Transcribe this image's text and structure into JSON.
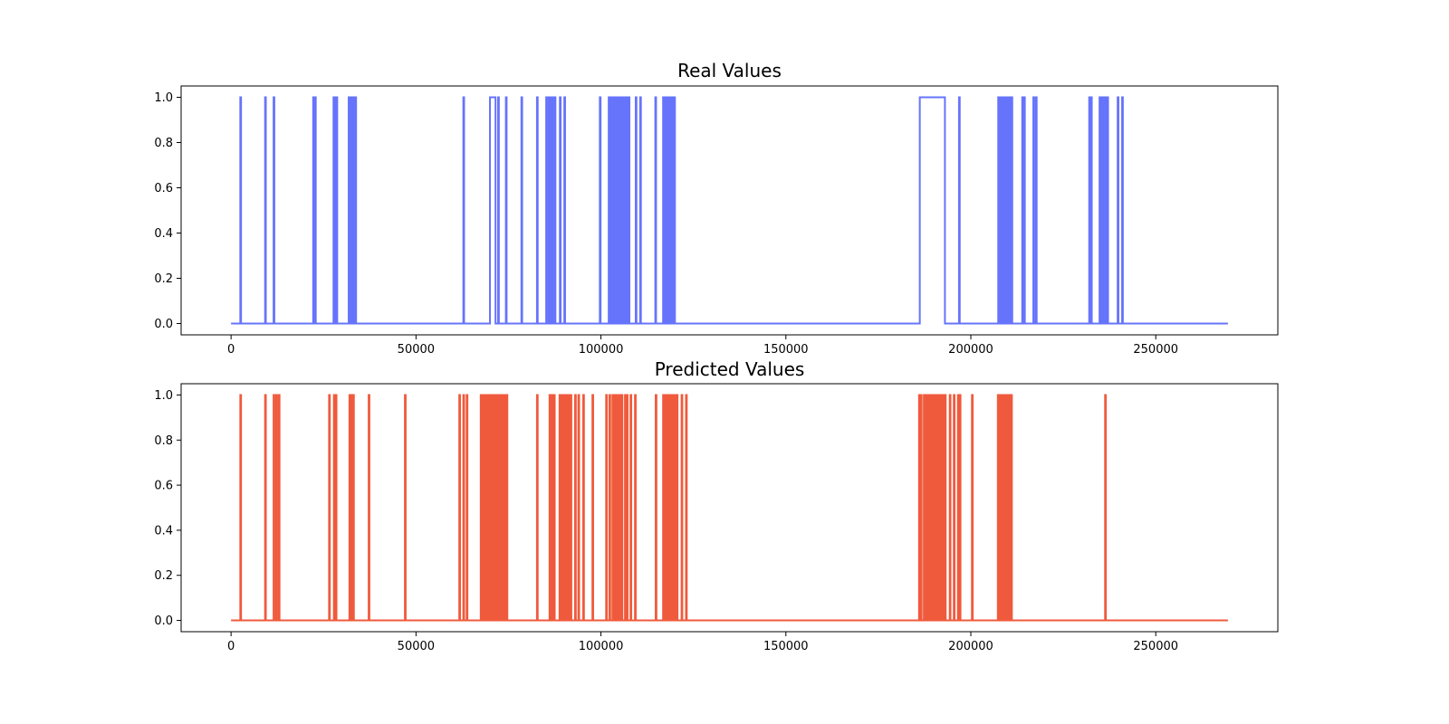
{
  "chart_data": [
    {
      "type": "line",
      "title": "Real Values",
      "color": "#6674fc",
      "xlim": [
        -13500,
        283000
      ],
      "ylim": [
        -0.05,
        1.05
      ],
      "xticks": [
        0,
        50000,
        100000,
        150000,
        200000,
        250000
      ],
      "xtick_labels": [
        "0",
        "50000",
        "100000",
        "150000",
        "200000",
        "250000"
      ],
      "yticks": [
        0.0,
        0.2,
        0.4,
        0.6,
        0.8,
        1.0
      ],
      "ytick_labels": [
        "0.0",
        "0.2",
        "0.4",
        "0.6",
        "0.8",
        "1.0"
      ],
      "x_range": [
        0,
        269500
      ],
      "active_intervals": [
        [
          2500,
          2700
        ],
        [
          9200,
          9400
        ],
        [
          11500,
          11700
        ],
        [
          22200,
          22400
        ],
        [
          22700,
          22900
        ],
        [
          27700,
          27900
        ],
        [
          28100,
          28300
        ],
        [
          28500,
          28700
        ],
        [
          31800,
          32000
        ],
        [
          32200,
          32400
        ],
        [
          32600,
          32800
        ],
        [
          33100,
          33300
        ],
        [
          33600,
          33800
        ],
        [
          62800,
          63000
        ],
        [
          70000,
          71500
        ],
        [
          72200,
          72400
        ],
        [
          74300,
          74500
        ],
        [
          78500,
          78700
        ],
        [
          82700,
          82900
        ],
        [
          85200,
          85400
        ],
        [
          85900,
          86100
        ],
        [
          86500,
          86700
        ],
        [
          87000,
          87200
        ],
        [
          87500,
          87700
        ],
        [
          88900,
          89100
        ],
        [
          90100,
          90300
        ],
        [
          99700,
          99900
        ],
        [
          102100,
          102300
        ],
        [
          102700,
          102900
        ],
        [
          103100,
          103300
        ],
        [
          103500,
          103700
        ],
        [
          103900,
          104100
        ],
        [
          104300,
          104500
        ],
        [
          104700,
          104900
        ],
        [
          105100,
          105300
        ],
        [
          105500,
          105700
        ],
        [
          105900,
          106100
        ],
        [
          106300,
          106500
        ],
        [
          106700,
          106900
        ],
        [
          107100,
          107300
        ],
        [
          107500,
          107700
        ],
        [
          109400,
          109600
        ],
        [
          110600,
          110800
        ],
        [
          114700,
          114900
        ],
        [
          116800,
          117000
        ],
        [
          117300,
          117500
        ],
        [
          117800,
          118000
        ],
        [
          118300,
          118500
        ],
        [
          118800,
          119000
        ],
        [
          119300,
          119500
        ],
        [
          119800,
          120000
        ],
        [
          186200,
          193000
        ],
        [
          196800,
          197000
        ],
        [
          207400,
          207600
        ],
        [
          207900,
          208100
        ],
        [
          208400,
          208600
        ],
        [
          208900,
          209100
        ],
        [
          209400,
          209600
        ],
        [
          209900,
          210100
        ],
        [
          210400,
          210600
        ],
        [
          211000,
          211200
        ],
        [
          213900,
          214100
        ],
        [
          214400,
          214600
        ],
        [
          216900,
          217100
        ],
        [
          217600,
          217800
        ],
        [
          232000,
          232200
        ],
        [
          232500,
          232700
        ],
        [
          234800,
          235000
        ],
        [
          235300,
          235500
        ],
        [
          235800,
          236000
        ],
        [
          236300,
          236500
        ],
        [
          236900,
          237100
        ],
        [
          239700,
          239900
        ],
        [
          240900,
          241100
        ]
      ]
    },
    {
      "type": "line",
      "title": "Predicted Values",
      "color": "#f05a3c",
      "xlim": [
        -13500,
        283000
      ],
      "ylim": [
        -0.05,
        1.05
      ],
      "xticks": [
        0,
        50000,
        100000,
        150000,
        200000,
        250000
      ],
      "xtick_labels": [
        "0",
        "50000",
        "100000",
        "150000",
        "200000",
        "250000"
      ],
      "yticks": [
        0.0,
        0.2,
        0.4,
        0.6,
        0.8,
        1.0
      ],
      "ytick_labels": [
        "0.0",
        "0.2",
        "0.4",
        "0.6",
        "0.8",
        "1.0"
      ],
      "x_range": [
        0,
        269500
      ],
      "active_intervals": [
        [
          2500,
          2700
        ],
        [
          9200,
          9400
        ],
        [
          11500,
          11700
        ],
        [
          12200,
          12400
        ],
        [
          12900,
          13100
        ],
        [
          26500,
          26700
        ],
        [
          27800,
          28000
        ],
        [
          28300,
          28500
        ],
        [
          32000,
          32200
        ],
        [
          32500,
          32700
        ],
        [
          33000,
          33200
        ],
        [
          37200,
          37400
        ],
        [
          47000,
          47200
        ],
        [
          61700,
          61900
        ],
        [
          62800,
          63000
        ],
        [
          63700,
          63900
        ],
        [
          67500,
          67700
        ],
        [
          67900,
          68100
        ],
        [
          68300,
          68500
        ],
        [
          68700,
          68900
        ],
        [
          69100,
          69300
        ],
        [
          69500,
          69700
        ],
        [
          69900,
          70100
        ],
        [
          70300,
          70500
        ],
        [
          70700,
          70900
        ],
        [
          71100,
          71300
        ],
        [
          71500,
          71700
        ],
        [
          71900,
          72100
        ],
        [
          72300,
          72500
        ],
        [
          72700,
          72900
        ],
        [
          73300,
          73500
        ],
        [
          73900,
          74100
        ],
        [
          74500,
          74700
        ],
        [
          82700,
          82900
        ],
        [
          86100,
          86300
        ],
        [
          86700,
          86900
        ],
        [
          87300,
          87500
        ],
        [
          88800,
          89000
        ],
        [
          89300,
          89500
        ],
        [
          89800,
          90000
        ],
        [
          90300,
          90500
        ],
        [
          90800,
          91000
        ],
        [
          91300,
          91500
        ],
        [
          91800,
          92000
        ],
        [
          93000,
          93200
        ],
        [
          93900,
          94100
        ],
        [
          95200,
          95400
        ],
        [
          97700,
          97900
        ],
        [
          101400,
          101600
        ],
        [
          102300,
          102500
        ],
        [
          103100,
          103300
        ],
        [
          103600,
          103800
        ],
        [
          104100,
          104300
        ],
        [
          104600,
          104800
        ],
        [
          105100,
          105300
        ],
        [
          105600,
          105800
        ],
        [
          106500,
          106700
        ],
        [
          107000,
          107200
        ],
        [
          108000,
          108200
        ],
        [
          109200,
          109400
        ],
        [
          114800,
          115000
        ],
        [
          116800,
          117000
        ],
        [
          117200,
          117400
        ],
        [
          117600,
          117800
        ],
        [
          118000,
          118200
        ],
        [
          118400,
          118600
        ],
        [
          118800,
          119000
        ],
        [
          119200,
          119400
        ],
        [
          119600,
          119800
        ],
        [
          120000,
          120200
        ],
        [
          120500,
          120700
        ],
        [
          121800,
          122000
        ],
        [
          123000,
          123200
        ],
        [
          186000,
          186300
        ],
        [
          186500,
          186700
        ],
        [
          187300,
          187500
        ],
        [
          187700,
          187900
        ],
        [
          188100,
          188300
        ],
        [
          188500,
          188700
        ],
        [
          188900,
          189100
        ],
        [
          189300,
          189500
        ],
        [
          189700,
          189900
        ],
        [
          190100,
          190300
        ],
        [
          190500,
          190700
        ],
        [
          190900,
          191100
        ],
        [
          191300,
          191500
        ],
        [
          191700,
          191900
        ],
        [
          192100,
          192300
        ],
        [
          192500,
          192700
        ],
        [
          193000,
          193200
        ],
        [
          194300,
          194500
        ],
        [
          195400,
          195600
        ],
        [
          196500,
          196700
        ],
        [
          197000,
          197200
        ],
        [
          200300,
          200500
        ],
        [
          207300,
          207500
        ],
        [
          207700,
          207900
        ],
        [
          208100,
          208300
        ],
        [
          208500,
          208700
        ],
        [
          208900,
          209100
        ],
        [
          209300,
          209500
        ],
        [
          209700,
          209900
        ],
        [
          210100,
          210300
        ],
        [
          210500,
          210700
        ],
        [
          210900,
          211100
        ],
        [
          236300,
          236500
        ]
      ]
    }
  ]
}
